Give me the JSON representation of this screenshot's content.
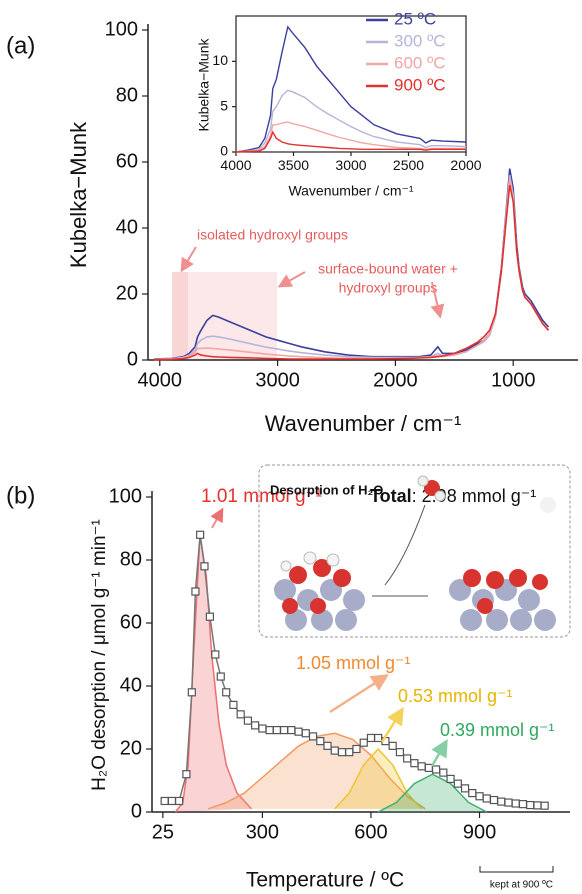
{
  "chart_data": [
    {
      "type": "line",
      "panel_label": "(a)",
      "xlabel": "Wavenumber / cm⁻¹",
      "ylabel": "Kubelka−Munk",
      "annotations": [
        "isolated hydroxyl groups",
        "surface-bound water +",
        "hydroxyl groups"
      ],
      "x": [
        4050,
        3900,
        3800,
        3750,
        3700,
        3680,
        3650,
        3600,
        3550,
        3500,
        3400,
        3300,
        3200,
        3100,
        3000,
        2900,
        2800,
        2600,
        2400,
        2200,
        2000,
        1900,
        1800,
        1700,
        1640,
        1600,
        1500,
        1400,
        1300,
        1250,
        1200,
        1150,
        1100,
        1060,
        1030,
        1000,
        970,
        950,
        920,
        900,
        850,
        800,
        750,
        700
      ],
      "series": [
        {
          "color": "#3b3f9e",
          "values": [
            0.3,
            0.5,
            1,
            2,
            4,
            7,
            9,
            12,
            13.5,
            13,
            11.5,
            10,
            8.5,
            7,
            6,
            5,
            4,
            2.5,
            1.5,
            1,
            1,
            1,
            1,
            1.5,
            4,
            2,
            2,
            3,
            5,
            6,
            8,
            14,
            28,
            45,
            58,
            52,
            35,
            28,
            22,
            20,
            18,
            15,
            12,
            10
          ]
        },
        {
          "color": "#b7b4dc",
          "values": [
            0.2,
            0.4,
            0.8,
            1.5,
            3,
            5,
            6,
            7,
            7.2,
            7,
            6.3,
            5.5,
            4.7,
            3.9,
            3.3,
            2.7,
            2.2,
            1.5,
            1,
            0.8,
            0.8,
            0.8,
            0.8,
            1,
            2,
            1.2,
            1.5,
            2.5,
            4.5,
            5.5,
            7.5,
            13,
            27,
            44,
            56,
            50,
            33,
            27,
            21,
            19,
            17,
            14,
            11,
            9
          ]
        },
        {
          "color": "#f2a6a6",
          "values": [
            0.2,
            0.3,
            0.6,
            1.2,
            2.2,
            3.5,
            3.5,
            3.6,
            3.5,
            3.3,
            3,
            2.6,
            2.2,
            1.8,
            1.5,
            1.2,
            1,
            0.7,
            0.5,
            0.5,
            0.5,
            0.6,
            0.7,
            1,
            1.3,
            1,
            1.5,
            2.5,
            4.5,
            6,
            8,
            13.5,
            27,
            43,
            55,
            49,
            33,
            27,
            21,
            19,
            17,
            14,
            11,
            9
          ]
        },
        {
          "color": "#e3322e",
          "values": [
            0.1,
            0.2,
            0.4,
            0.8,
            1.5,
            2,
            1.5,
            1.2,
            1,
            0.9,
            0.8,
            0.7,
            0.6,
            0.5,
            0.4,
            0.3,
            0.3,
            0.3,
            0.3,
            0.3,
            0.4,
            0.5,
            0.6,
            0.8,
            1,
            1.2,
            2,
            3.5,
            5.5,
            7,
            9,
            14,
            27,
            42,
            53,
            48,
            33,
            27,
            21,
            19,
            17,
            14,
            11,
            9
          ]
        }
      ],
      "xlim": [
        4100,
        450
      ],
      "xticks": [
        4000,
        3000,
        2000,
        1000
      ],
      "ylim": [
        0,
        100
      ],
      "yticks": [
        0,
        20,
        40,
        60,
        80,
        100
      ]
    },
    {
      "type": "line",
      "xlabel": "Wavenumber / cm⁻¹",
      "ylabel": "Kubelka−Munk",
      "legend": "upper right",
      "x": [
        4000,
        3900,
        3800,
        3750,
        3700,
        3680,
        3650,
        3600,
        3550,
        3500,
        3400,
        3300,
        3200,
        3100,
        3000,
        2900,
        2800,
        2600,
        2400,
        2350,
        2300,
        2200,
        2000
      ],
      "series": [
        {
          "name": "25 ºC",
          "color": "#3b3f9e",
          "values": [
            0,
            0.2,
            0.5,
            1.5,
            4,
            7,
            8,
            11,
            13.8,
            13,
            11.5,
            9.5,
            8,
            6.5,
            5,
            4,
            3,
            2,
            1.5,
            1,
            1.3,
            1.2,
            1.1
          ]
        },
        {
          "name": "300 ºC",
          "color": "#b7b4dc",
          "values": [
            0,
            0.1,
            0.3,
            1,
            2.5,
            4.5,
            5,
            6.2,
            6.8,
            6.6,
            6,
            5,
            4.2,
            3.5,
            2.8,
            2.2,
            1.7,
            1.1,
            0.8,
            0.5,
            0.7,
            0.7,
            0.6
          ]
        },
        {
          "name": "600 ºC",
          "color": "#f2a6a6",
          "values": [
            0,
            0.1,
            0.2,
            0.6,
            1.8,
            3,
            3,
            3.2,
            3.3,
            3.1,
            2.8,
            2.4,
            2,
            1.6,
            1.3,
            1,
            0.8,
            0.5,
            0.4,
            0.3,
            0.4,
            0.4,
            0.4
          ]
        },
        {
          "name": "900 ºC",
          "color": "#e3322e",
          "values": [
            0,
            0.05,
            0.1,
            0.4,
            1.5,
            2.2,
            1.5,
            1.1,
            0.9,
            0.8,
            0.7,
            0.6,
            0.5,
            0.4,
            0.35,
            0.3,
            0.3,
            0.3,
            0.3,
            0.2,
            0.3,
            0.3,
            0.3
          ]
        }
      ],
      "xlim": [
        4000,
        2000
      ],
      "xticks": [
        4000,
        3500,
        3000,
        2500,
        2000
      ],
      "ylim": [
        0,
        15
      ],
      "yticks": [
        0,
        5,
        10
      ]
    },
    {
      "type": "line",
      "panel_label": "(b)",
      "xlabel": "Temperature / ºC",
      "ylabel": "H₂O desorption / μmol g⁻¹ min⁻¹",
      "total_label": "Total",
      "total_text": ": 2.98 mmol g⁻¹",
      "inset_title": "Desorption of H₂O",
      "note": "kept at 900 ºC",
      "marker": "square",
      "color": "#777777",
      "x": [
        30,
        50,
        70,
        90,
        105,
        115,
        128,
        140,
        155,
        170,
        185,
        200,
        220,
        240,
        260,
        280,
        300,
        320,
        340,
        360,
        380,
        400,
        420,
        440,
        460,
        480,
        500,
        520,
        540,
        560,
        580,
        600,
        620,
        640,
        660,
        680,
        700,
        720,
        740,
        760,
        780,
        800,
        820,
        840,
        860,
        880,
        900,
        920,
        940,
        960,
        980,
        1000,
        1020,
        1040,
        1060,
        1080
      ],
      "values": [
        3.5,
        3.5,
        3.5,
        12,
        38,
        70,
        88,
        78,
        62,
        50,
        43,
        38,
        34,
        31,
        29,
        27.5,
        26.5,
        26,
        26,
        26,
        26,
        25.5,
        25,
        24,
        22.5,
        21,
        19.5,
        19,
        19,
        20,
        22,
        23.5,
        23.5,
        22.5,
        21,
        19,
        17,
        15.5,
        14.5,
        14,
        13.5,
        12.5,
        10.5,
        9,
        7.5,
        6,
        5,
        4.3,
        3.8,
        3.3,
        3,
        2.7,
        2.5,
        2.2,
        2.1,
        2
      ],
      "components": [
        {
          "label": "1.01 mmol g⁻¹",
          "color": "#ee6f6f",
          "x": [
            60,
            80,
            95,
            110,
            128,
            145,
            160,
            180,
            200,
            230,
            270
          ],
          "values": [
            0,
            3,
            15,
            50,
            88,
            75,
            50,
            28,
            15,
            6,
            1
          ]
        },
        {
          "label": "1.05 mmol g⁻¹",
          "color": "#f39a62",
          "x": [
            150,
            200,
            250,
            300,
            350,
            400,
            450,
            500,
            550,
            600,
            650,
            700,
            750
          ],
          "values": [
            1,
            3,
            6,
            11,
            16,
            21,
            24,
            25,
            23,
            18,
            11,
            5,
            1
          ]
        },
        {
          "label": "0.53 mmol g⁻¹",
          "color": "#f0c430",
          "x": [
            500,
            540,
            580,
            620,
            660,
            700,
            740
          ],
          "values": [
            1,
            6,
            15,
            20,
            15,
            6,
            1
          ]
        },
        {
          "label": "0.39 mmol g⁻¹",
          "color": "#3fb070",
          "x": [
            620,
            670,
            720,
            770,
            820,
            870,
            920
          ],
          "values": [
            0,
            3,
            9,
            12,
            9,
            3,
            0
          ]
        }
      ],
      "xlim": [
        -5,
        1150
      ],
      "xticks": [
        25,
        300,
        600,
        900
      ],
      "ylim": [
        0,
        100
      ],
      "yticks": [
        0,
        20,
        40,
        60,
        80,
        100
      ]
    }
  ]
}
